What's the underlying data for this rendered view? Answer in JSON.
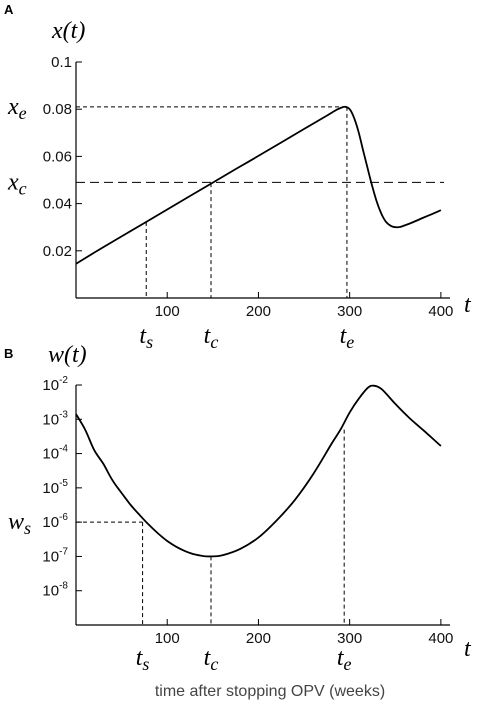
{
  "chart_data": [
    {
      "panel": "A",
      "type": "line",
      "ylabel": "x(t)",
      "xlabel": "t",
      "xlim": [
        0,
        410
      ],
      "ylim": [
        0,
        0.1
      ],
      "xticks": [
        100,
        200,
        300,
        400
      ],
      "yticks": [
        0.02,
        0.04,
        0.06,
        0.08,
        0.1
      ],
      "ytick_labels": [
        "0.02",
        "0.04",
        "0.06",
        "0.08",
        "0.1"
      ],
      "series": [
        {
          "x": [
            0,
            25,
            50,
            75,
            100,
            125,
            150,
            175,
            200,
            225,
            250,
            275,
            285,
            290,
            295,
            300,
            305,
            310,
            315,
            320,
            325,
            330,
            335,
            340,
            345,
            350,
            355,
            360,
            370,
            380,
            390,
            400
          ],
          "values": [
            0.0145,
            0.0204,
            0.0261,
            0.0318,
            0.0375,
            0.0432,
            0.0489,
            0.0546,
            0.0602,
            0.0659,
            0.0716,
            0.0773,
            0.0796,
            0.0805,
            0.081,
            0.08,
            0.0762,
            0.07,
            0.0622,
            0.0545,
            0.047,
            0.0405,
            0.0355,
            0.0322,
            0.0306,
            0.03,
            0.0301,
            0.0307,
            0.0322,
            0.0339,
            0.0355,
            0.0372
          ]
        }
      ],
      "markers": [
        {
          "label_main": "t",
          "label_sub": "s",
          "x": 77,
          "y": 0.0322
        },
        {
          "label_main": "t",
          "label_sub": "c",
          "x": 148,
          "y": 0.0487
        },
        {
          "label_main": "t",
          "label_sub": "e",
          "x": 297,
          "y": 0.081
        }
      ],
      "hlines": [
        {
          "label_main": "x",
          "label_sub": "e",
          "y": 0.081,
          "x_end": 297,
          "full_width": false
        },
        {
          "label_main": "x",
          "label_sub": "c",
          "y": 0.049,
          "x_end": 410,
          "full_width": true
        }
      ]
    },
    {
      "panel": "B",
      "type": "line",
      "ylabel": "w(t)",
      "xlabel": "t",
      "yscale": "log",
      "xlim": [
        0,
        410
      ],
      "ylim": [
        1e-09,
        0.01
      ],
      "xticks": [
        100,
        200,
        300,
        400
      ],
      "ytick_exponents": [
        -8,
        -7,
        -6,
        -5,
        -4,
        -3,
        -2
      ],
      "series": [
        {
          "x": [
            0,
            10,
            20,
            30,
            40,
            50,
            60,
            70,
            80,
            90,
            100,
            110,
            120,
            130,
            140,
            148,
            160,
            180,
            200,
            220,
            240,
            260,
            280,
            290,
            300,
            310,
            320,
            326,
            335,
            350,
            365,
            380,
            400
          ],
          "log10_values": [
            -2.85,
            -3.3,
            -3.9,
            -4.3,
            -4.78,
            -5.15,
            -5.5,
            -5.8,
            -6.08,
            -6.33,
            -6.55,
            -6.72,
            -6.85,
            -6.94,
            -6.99,
            -7.0,
            -6.97,
            -6.78,
            -6.45,
            -5.95,
            -5.35,
            -4.6,
            -3.72,
            -3.3,
            -2.8,
            -2.4,
            -2.08,
            -2.02,
            -2.12,
            -2.55,
            -2.95,
            -3.3,
            -3.78
          ]
        }
      ],
      "markers": [
        {
          "label_main": "t",
          "label_sub": "s",
          "x": 73,
          "log10_y": -6.0
        },
        {
          "label_main": "t",
          "label_sub": "c",
          "x": 148,
          "log10_y": -7.0
        },
        {
          "label_main": "t",
          "label_sub": "e",
          "x": 294,
          "log10_y": -3.3
        }
      ],
      "hlines": [
        {
          "label_main": "w",
          "label_sub": "s",
          "log10_y": -6.0,
          "x_end": 73,
          "full_width": false
        }
      ]
    }
  ],
  "caption": "time after stopping OPV (weeks)"
}
